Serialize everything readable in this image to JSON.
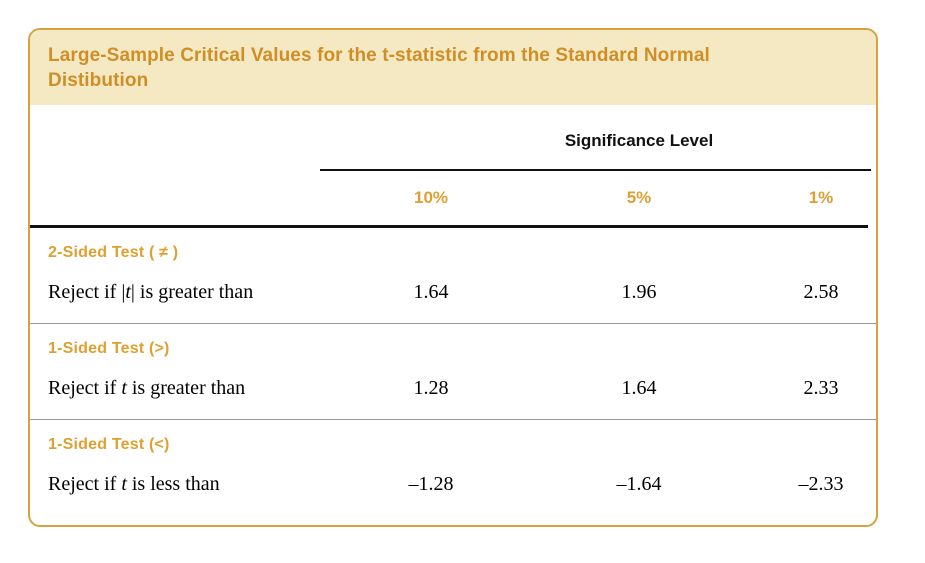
{
  "card": {
    "title": "Large-Sample Critical Values for the t-statistic from the Standard Normal Distibution"
  },
  "significance": {
    "label": "Significance Level",
    "levels": [
      "10%",
      "5%",
      "1%"
    ]
  },
  "sections": [
    {
      "header": "2-Sided Test ( ≠ )",
      "label": {
        "pre": "Reject if ",
        "bar_open": "|",
        "stat": "t",
        "bar_close": "|",
        "post": " is greater than"
      },
      "values": [
        "1.64",
        "1.96",
        "2.58"
      ]
    },
    {
      "header": "1-Sided Test (>)",
      "label": {
        "pre": "Reject if ",
        "bar_open": "",
        "stat": "t",
        "bar_close": "",
        "post": " is greater than"
      },
      "values": [
        "1.28",
        "1.64",
        "2.33"
      ]
    },
    {
      "header": "1-Sided Test (<)",
      "label": {
        "pre": "Reject if ",
        "bar_open": "",
        "stat": "t",
        "bar_close": "",
        "post": " is less than"
      },
      "values": [
        "–1.28",
        "–1.64",
        "–2.33"
      ]
    }
  ],
  "colors": {
    "accent_orange": "#dfa032",
    "title_orange": "#d08f26",
    "band_cream": "#f5e9c3",
    "border_gold": "#d6a23e"
  }
}
